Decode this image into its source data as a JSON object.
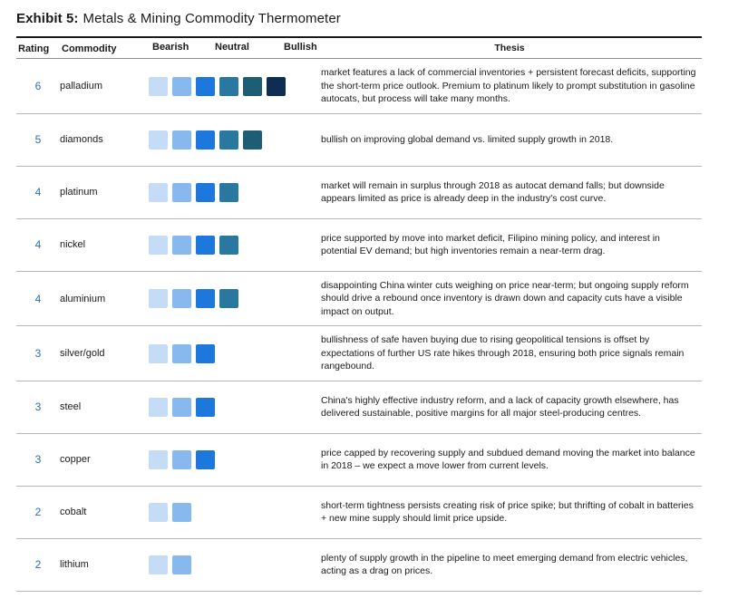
{
  "title": {
    "prefix": "Exhibit 5:",
    "text": "Metals & Mining Commodity Thermometer"
  },
  "colors": {
    "rating_text": "#2f6db8",
    "scale": [
      "#c5dcf6",
      "#88b9ee",
      "#1c78dd",
      "#28789f",
      "#1d5e74",
      "#0f2d52"
    ],
    "top_rule": "#1a1a1a",
    "row_rule": "#b5b5b5"
  },
  "table": {
    "header": {
      "rating": "Rating",
      "commodity": "Commodity",
      "bearish": "Bearish",
      "neutral": "Neutral",
      "bullish": "Bullish",
      "thesis": "Thesis"
    },
    "rows": [
      {
        "rating": 6,
        "commodity": "palladium",
        "thesis": "market features a lack of commercial inventories + persistent forecast deficits, supporting the short-term price outlook. Premium to platinum likely to prompt substitution in gasoline autocats, but process will take many months."
      },
      {
        "rating": 5,
        "commodity": "diamonds",
        "thesis": "bullish on improving global demand vs. limited supply growth in 2018."
      },
      {
        "rating": 4,
        "commodity": "platinum",
        "thesis": "market will remain in surplus through 2018 as autocat demand falls; but downside appears limited as price is already deep in the industry's cost curve."
      },
      {
        "rating": 4,
        "commodity": "nickel",
        "thesis": "price supported by move into market deficit, Filipino mining policy, and interest in potential EV demand; but high inventories remain a near-term drag."
      },
      {
        "rating": 4,
        "commodity": "aluminium",
        "thesis": "disappointing China winter cuts weighing on price near-term; but ongoing supply reform should drive a rebound once inventory is drawn down and capacity cuts have a visible impact on output."
      },
      {
        "rating": 3,
        "commodity": "silver/gold",
        "thesis": "bullishness of safe haven buying due to rising geopolitical tensions is offset by expectations of further US rate hikes through 2018, ensuring both price signals remain rangebound."
      },
      {
        "rating": 3,
        "commodity": "steel",
        "thesis": "China's highly effective industry reform, and a lack of capacity growth elsewhere, has delivered sustainable, positive margins for all major steel-producing centres."
      },
      {
        "rating": 3,
        "commodity": "copper",
        "thesis": "price capped by recovering supply and subdued demand moving the market into balance in 2018 – we expect a move lower from current levels."
      },
      {
        "rating": 2,
        "commodity": "cobalt",
        "thesis": "short-term tightness persists creating risk of price spike; but thrifting of cobalt in batteries + new mine supply should limit price upside."
      },
      {
        "rating": 2,
        "commodity": "lithium",
        "thesis": "plenty of supply growth in the pipeline to meet emerging demand from electric vehicles, acting as a drag on prices."
      }
    ]
  },
  "chart_data": {
    "type": "bar",
    "title": "Exhibit 5: Metals & Mining Commodity Thermometer",
    "categories": [
      "palladium",
      "diamonds",
      "platinum",
      "nickel",
      "aluminium",
      "silver/gold",
      "steel",
      "copper",
      "cobalt",
      "lithium"
    ],
    "values": [
      6,
      5,
      4,
      4,
      4,
      3,
      3,
      3,
      2,
      2
    ],
    "xlabel": "",
    "ylabel": "Rating",
    "value_range": [
      0,
      6
    ],
    "scale_labels": [
      "Bearish",
      "Neutral",
      "Bullish"
    ],
    "orientation": "horizontal",
    "legend": "none",
    "grid": false
  }
}
